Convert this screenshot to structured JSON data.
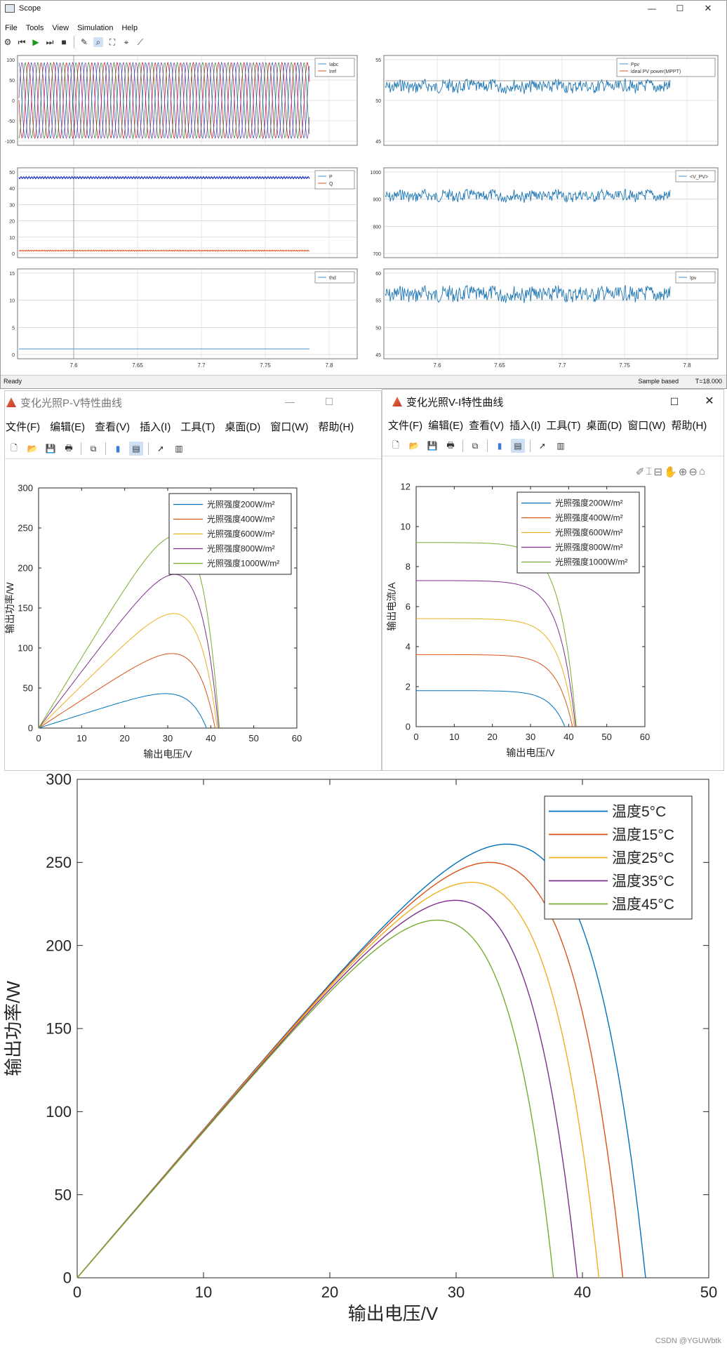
{
  "scope": {
    "title": "Scope",
    "menu": [
      "File",
      "Tools",
      "View",
      "Simulation",
      "Help"
    ],
    "status_left": "Ready",
    "status_mode": "Sample based",
    "status_time": "T=18.000",
    "time_ticks": [
      "7.6",
      "7.65",
      "7.7",
      "7.75",
      "7.8"
    ],
    "left_panels": [
      {
        "yticks": [
          "100",
          "50",
          "0",
          "-50",
          "-100"
        ],
        "legend": [
          "Iabc",
          "Iref"
        ]
      },
      {
        "yticks": [
          "50",
          "40",
          "30",
          "20",
          "10",
          "0"
        ],
        "legend": [
          "P",
          "Q"
        ]
      },
      {
        "yticks": [
          "15",
          "10",
          "5",
          "0"
        ],
        "legend": [
          "thd"
        ]
      }
    ],
    "right_panels": [
      {
        "yticks": [
          "55",
          "50",
          "45"
        ],
        "legend": [
          "Ppv",
          "ideal PV power(MPPT)"
        ]
      },
      {
        "yticks": [
          "1000",
          "900",
          "800",
          "700"
        ],
        "legend": [
          "<V_PV>"
        ]
      },
      {
        "yticks": [
          "60",
          "55",
          "50",
          "45"
        ],
        "legend": [
          "Ipv"
        ]
      }
    ]
  },
  "pv_window": {
    "title": "变化光照P-V特性曲线",
    "menu": [
      "文件(F)",
      "编辑(E)",
      "查看(V)",
      "插入(I)",
      "工具(T)",
      "桌面(D)",
      "窗口(W)",
      "帮助(H)"
    ],
    "chart_data": {
      "type": "line",
      "xlabel": "输出电压/V",
      "ylabel": "输出功率/W",
      "xlim": [
        0,
        60
      ],
      "ylim": [
        0,
        300
      ],
      "xticks": [
        "0",
        "10",
        "20",
        "30",
        "40",
        "50",
        "60"
      ],
      "yticks": [
        "0",
        "50",
        "100",
        "150",
        "200",
        "250",
        "300"
      ],
      "legend_position": "top-right",
      "series": [
        {
          "name": "光照强度200W/m²",
          "color": "#0072bd",
          "voc": 39.0,
          "vmp": 29.0,
          "pmax": 43
        },
        {
          "name": "光照强度400W/m²",
          "color": "#d95319",
          "voc": 41.0,
          "vmp": 30.5,
          "pmax": 93
        },
        {
          "name": "光照强度600W/m²",
          "color": "#edb120",
          "voc": 41.5,
          "vmp": 31.0,
          "pmax": 143
        },
        {
          "name": "光照强度800W/m²",
          "color": "#7e2f8e",
          "voc": 41.8,
          "vmp": 31.5,
          "pmax": 192
        },
        {
          "name": "光照强度1000W/m²",
          "color": "#77ac30",
          "voc": 42.0,
          "vmp": 31.5,
          "pmax": 240
        }
      ]
    }
  },
  "iv_window": {
    "title": "变化光照V-I特性曲线",
    "menu": [
      "文件(F)",
      "编辑(E)",
      "查看(V)",
      "插入(I)",
      "工具(T)",
      "桌面(D)",
      "窗口(W)",
      "帮助(H)"
    ],
    "chart_data": {
      "type": "line",
      "xlabel": "输出电压/V",
      "ylabel": "输出电流/A",
      "xlim": [
        0,
        60
      ],
      "ylim": [
        0,
        12
      ],
      "xticks": [
        "0",
        "10",
        "20",
        "30",
        "40",
        "50",
        "60"
      ],
      "yticks": [
        "0",
        "2",
        "4",
        "6",
        "8",
        "10",
        "12"
      ],
      "legend_position": "top-right",
      "series": [
        {
          "name": "光照强度200W/m²",
          "color": "#0072bd",
          "isc": 1.8,
          "voc": 39.0
        },
        {
          "name": "光照强度400W/m²",
          "color": "#d95319",
          "isc": 3.6,
          "voc": 41.0
        },
        {
          "name": "光照强度600W/m²",
          "color": "#edb120",
          "isc": 5.4,
          "voc": 41.5
        },
        {
          "name": "光照强度800W/m²",
          "color": "#7e2f8e",
          "isc": 7.3,
          "voc": 41.8
        },
        {
          "name": "光照强度1000W/m²",
          "color": "#77ac30",
          "isc": 9.2,
          "voc": 42.0
        }
      ]
    }
  },
  "temp_chart": {
    "chart_data": {
      "type": "line",
      "xlabel": "输出电压/V",
      "ylabel": "输出功率/W",
      "xlim": [
        0,
        50
      ],
      "ylim": [
        0,
        300
      ],
      "xticks": [
        "0",
        "10",
        "20",
        "30",
        "40",
        "50"
      ],
      "yticks": [
        "0",
        "50",
        "100",
        "150",
        "200",
        "250",
        "300"
      ],
      "legend_position": "top-right",
      "series": [
        {
          "name": "温度5°C",
          "color": "#0072bd",
          "voc": 45.0,
          "vmp": 34.0,
          "pmax": 261
        },
        {
          "name": "温度15°C",
          "color": "#d95319",
          "voc": 43.2,
          "vmp": 32.5,
          "pmax": 250
        },
        {
          "name": "温度25°C",
          "color": "#edb120",
          "voc": 41.3,
          "vmp": 31.0,
          "pmax": 238
        },
        {
          "name": "温度35°C",
          "color": "#7e2f8e",
          "voc": 39.6,
          "vmp": 29.5,
          "pmax": 227
        },
        {
          "name": "温度45°C",
          "color": "#77ac30",
          "voc": 37.7,
          "vmp": 28.0,
          "pmax": 215
        }
      ]
    }
  },
  "watermark": "CSDN @YGUWbtk"
}
